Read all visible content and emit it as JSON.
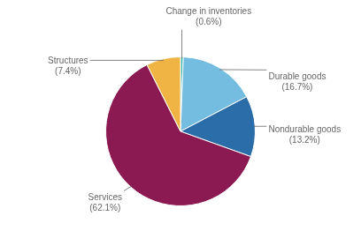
{
  "chart_data": {
    "type": "pie",
    "categories": [
      "Change in inventories",
      "Durable goods",
      "Nondurable goods",
      "Services",
      "Structures"
    ],
    "values": [
      0.6,
      16.7,
      13.2,
      62.1,
      7.4
    ],
    "value_labels": [
      "(0.6%)",
      "(16.7%)",
      "(13.2%)",
      "(62.1%)",
      "(7.4%)"
    ],
    "colors": [
      "#2db3b0",
      "#74bde0",
      "#2a6da8",
      "#8b1a52",
      "#f0b445"
    ],
    "data_labels": true
  }
}
